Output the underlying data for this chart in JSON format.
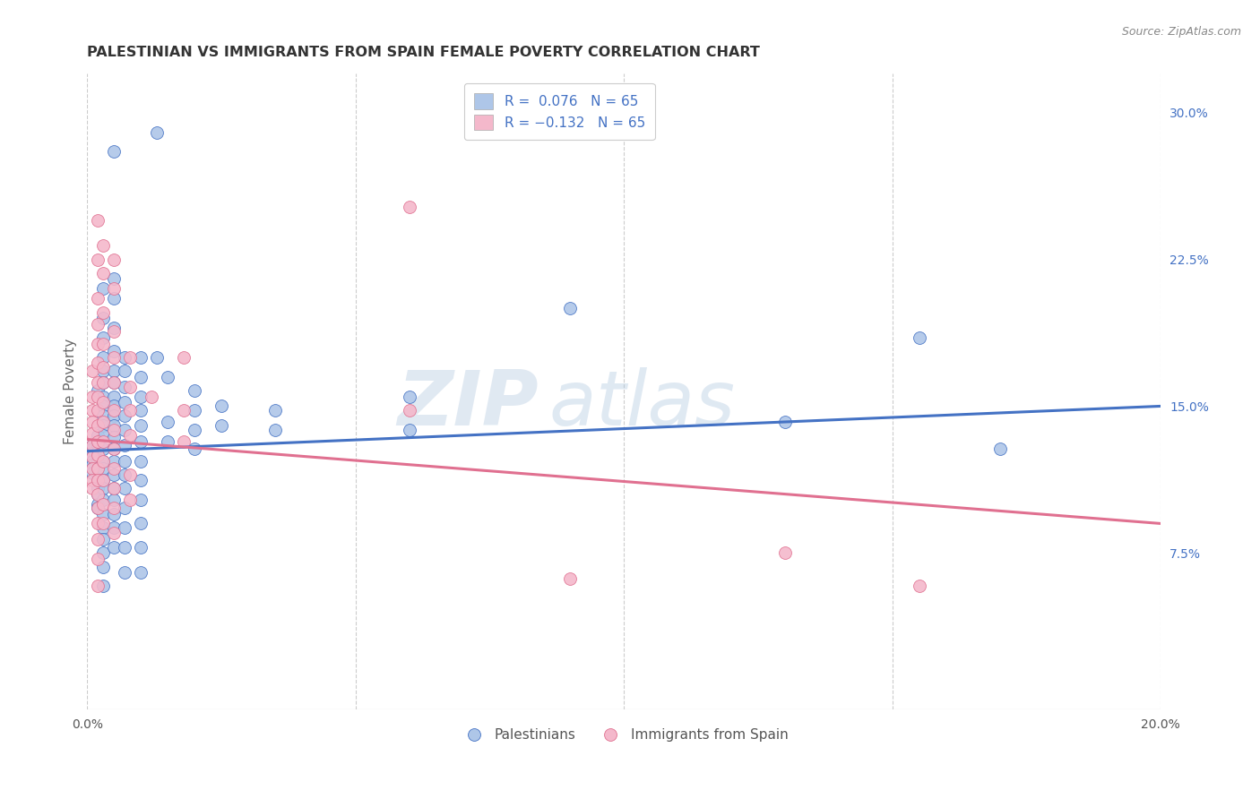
{
  "title": "PALESTINIAN VS IMMIGRANTS FROM SPAIN FEMALE POVERTY CORRELATION CHART",
  "source": "Source: ZipAtlas.com",
  "ylabel": "Female Poverty",
  "right_yticks": [
    "30.0%",
    "22.5%",
    "15.0%",
    "7.5%"
  ],
  "right_ytick_vals": [
    0.3,
    0.225,
    0.15,
    0.075
  ],
  "xmin": 0.0,
  "xmax": 0.2,
  "ymin": -0.005,
  "ymax": 0.32,
  "color_blue": "#aec6e8",
  "color_pink": "#f4b8cb",
  "line_blue": "#4472c4",
  "line_pink": "#e07090",
  "watermark_zip": "ZIP",
  "watermark_atlas": "atlas",
  "blue_line_start": 0.127,
  "blue_line_end": 0.15,
  "pink_line_start": 0.133,
  "pink_line_end": 0.09,
  "scatter_blue": [
    [
      0.001,
      0.13
    ],
    [
      0.001,
      0.128
    ],
    [
      0.001,
      0.126
    ],
    [
      0.001,
      0.124
    ],
    [
      0.001,
      0.122
    ],
    [
      0.001,
      0.12
    ],
    [
      0.001,
      0.118
    ],
    [
      0.001,
      0.116
    ],
    [
      0.002,
      0.158
    ],
    [
      0.002,
      0.135
    ],
    [
      0.002,
      0.13
    ],
    [
      0.002,
      0.127
    ],
    [
      0.002,
      0.122
    ],
    [
      0.002,
      0.118
    ],
    [
      0.002,
      0.115
    ],
    [
      0.002,
      0.112
    ],
    [
      0.002,
      0.108
    ],
    [
      0.002,
      0.105
    ],
    [
      0.002,
      0.1
    ],
    [
      0.002,
      0.098
    ],
    [
      0.003,
      0.21
    ],
    [
      0.003,
      0.195
    ],
    [
      0.003,
      0.185
    ],
    [
      0.003,
      0.175
    ],
    [
      0.003,
      0.168
    ],
    [
      0.003,
      0.162
    ],
    [
      0.003,
      0.155
    ],
    [
      0.003,
      0.15
    ],
    [
      0.003,
      0.145
    ],
    [
      0.003,
      0.14
    ],
    [
      0.003,
      0.135
    ],
    [
      0.003,
      0.128
    ],
    [
      0.003,
      0.122
    ],
    [
      0.003,
      0.118
    ],
    [
      0.003,
      0.112
    ],
    [
      0.003,
      0.108
    ],
    [
      0.003,
      0.102
    ],
    [
      0.003,
      0.095
    ],
    [
      0.003,
      0.088
    ],
    [
      0.003,
      0.082
    ],
    [
      0.003,
      0.075
    ],
    [
      0.003,
      0.068
    ],
    [
      0.003,
      0.058
    ],
    [
      0.005,
      0.28
    ],
    [
      0.005,
      0.215
    ],
    [
      0.005,
      0.205
    ],
    [
      0.005,
      0.19
    ],
    [
      0.005,
      0.178
    ],
    [
      0.005,
      0.168
    ],
    [
      0.005,
      0.162
    ],
    [
      0.005,
      0.155
    ],
    [
      0.005,
      0.15
    ],
    [
      0.005,
      0.145
    ],
    [
      0.005,
      0.14
    ],
    [
      0.005,
      0.134
    ],
    [
      0.005,
      0.128
    ],
    [
      0.005,
      0.122
    ],
    [
      0.005,
      0.115
    ],
    [
      0.005,
      0.108
    ],
    [
      0.005,
      0.102
    ],
    [
      0.005,
      0.095
    ],
    [
      0.005,
      0.088
    ],
    [
      0.005,
      0.078
    ],
    [
      0.007,
      0.175
    ],
    [
      0.007,
      0.168
    ],
    [
      0.007,
      0.16
    ],
    [
      0.007,
      0.152
    ],
    [
      0.007,
      0.145
    ],
    [
      0.007,
      0.138
    ],
    [
      0.007,
      0.13
    ],
    [
      0.007,
      0.122
    ],
    [
      0.007,
      0.115
    ],
    [
      0.007,
      0.108
    ],
    [
      0.007,
      0.098
    ],
    [
      0.007,
      0.088
    ],
    [
      0.007,
      0.078
    ],
    [
      0.007,
      0.065
    ],
    [
      0.01,
      0.175
    ],
    [
      0.01,
      0.165
    ],
    [
      0.01,
      0.155
    ],
    [
      0.01,
      0.148
    ],
    [
      0.01,
      0.14
    ],
    [
      0.01,
      0.132
    ],
    [
      0.01,
      0.122
    ],
    [
      0.01,
      0.112
    ],
    [
      0.01,
      0.102
    ],
    [
      0.01,
      0.09
    ],
    [
      0.01,
      0.078
    ],
    [
      0.01,
      0.065
    ],
    [
      0.013,
      0.29
    ],
    [
      0.013,
      0.175
    ],
    [
      0.015,
      0.165
    ],
    [
      0.015,
      0.142
    ],
    [
      0.015,
      0.132
    ],
    [
      0.02,
      0.158
    ],
    [
      0.02,
      0.148
    ],
    [
      0.02,
      0.138
    ],
    [
      0.02,
      0.128
    ],
    [
      0.025,
      0.15
    ],
    [
      0.025,
      0.14
    ],
    [
      0.035,
      0.148
    ],
    [
      0.035,
      0.138
    ],
    [
      0.06,
      0.155
    ],
    [
      0.06,
      0.138
    ],
    [
      0.09,
      0.2
    ],
    [
      0.13,
      0.142
    ],
    [
      0.155,
      0.185
    ],
    [
      0.17,
      0.128
    ]
  ],
  "scatter_pink": [
    [
      0.001,
      0.168
    ],
    [
      0.001,
      0.155
    ],
    [
      0.001,
      0.148
    ],
    [
      0.001,
      0.142
    ],
    [
      0.001,
      0.136
    ],
    [
      0.001,
      0.13
    ],
    [
      0.001,
      0.124
    ],
    [
      0.001,
      0.118
    ],
    [
      0.001,
      0.112
    ],
    [
      0.001,
      0.108
    ],
    [
      0.002,
      0.245
    ],
    [
      0.002,
      0.225
    ],
    [
      0.002,
      0.205
    ],
    [
      0.002,
      0.192
    ],
    [
      0.002,
      0.182
    ],
    [
      0.002,
      0.172
    ],
    [
      0.002,
      0.162
    ],
    [
      0.002,
      0.155
    ],
    [
      0.002,
      0.148
    ],
    [
      0.002,
      0.14
    ],
    [
      0.002,
      0.132
    ],
    [
      0.002,
      0.125
    ],
    [
      0.002,
      0.118
    ],
    [
      0.002,
      0.112
    ],
    [
      0.002,
      0.105
    ],
    [
      0.002,
      0.098
    ],
    [
      0.002,
      0.09
    ],
    [
      0.002,
      0.082
    ],
    [
      0.002,
      0.072
    ],
    [
      0.002,
      0.058
    ],
    [
      0.003,
      0.232
    ],
    [
      0.003,
      0.218
    ],
    [
      0.003,
      0.198
    ],
    [
      0.003,
      0.182
    ],
    [
      0.003,
      0.17
    ],
    [
      0.003,
      0.162
    ],
    [
      0.003,
      0.152
    ],
    [
      0.003,
      0.142
    ],
    [
      0.003,
      0.132
    ],
    [
      0.003,
      0.122
    ],
    [
      0.003,
      0.112
    ],
    [
      0.003,
      0.1
    ],
    [
      0.003,
      0.09
    ],
    [
      0.005,
      0.225
    ],
    [
      0.005,
      0.21
    ],
    [
      0.005,
      0.188
    ],
    [
      0.005,
      0.175
    ],
    [
      0.005,
      0.162
    ],
    [
      0.005,
      0.148
    ],
    [
      0.005,
      0.138
    ],
    [
      0.005,
      0.128
    ],
    [
      0.005,
      0.118
    ],
    [
      0.005,
      0.108
    ],
    [
      0.005,
      0.098
    ],
    [
      0.005,
      0.085
    ],
    [
      0.008,
      0.175
    ],
    [
      0.008,
      0.16
    ],
    [
      0.008,
      0.148
    ],
    [
      0.008,
      0.135
    ],
    [
      0.008,
      0.115
    ],
    [
      0.008,
      0.102
    ],
    [
      0.012,
      0.155
    ],
    [
      0.018,
      0.175
    ],
    [
      0.018,
      0.148
    ],
    [
      0.018,
      0.132
    ],
    [
      0.06,
      0.252
    ],
    [
      0.06,
      0.148
    ],
    [
      0.09,
      0.062
    ],
    [
      0.13,
      0.075
    ],
    [
      0.155,
      0.058
    ]
  ]
}
